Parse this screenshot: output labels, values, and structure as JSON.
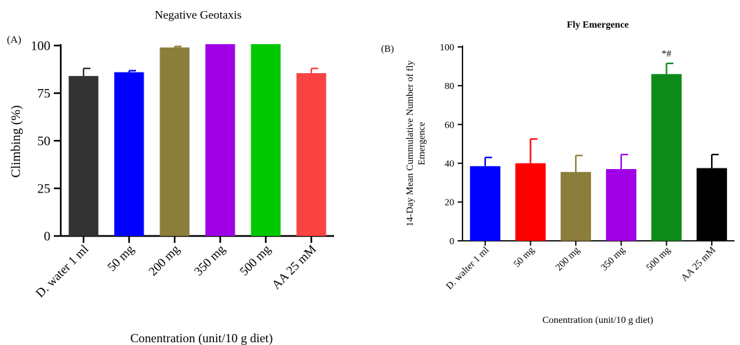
{
  "chart_data": [
    {
      "type": "bar",
      "panel_label": "(A)",
      "title": "Negative Geotaxis",
      "xlabel": "Conentration  (unit/10 g diet)",
      "ylabel": "Climbing (%)",
      "ylim": [
        0,
        100
      ],
      "yticks": [
        "0",
        "25",
        "50",
        "75",
        "100"
      ],
      "categories": [
        "D. water 1 ml",
        "50 mg",
        "200 mg",
        "350 mg",
        "500 mg",
        "AA 25 mM"
      ],
      "values": [
        84,
        86,
        99,
        100,
        100,
        85.5
      ],
      "errors": [
        4,
        0.8,
        0.5,
        0,
        0,
        2.5
      ],
      "colors": [
        "#333333",
        "#0000ff",
        "#8b7d3a",
        "#a100e6",
        "#00c800",
        "#f94343"
      ],
      "grid": false,
      "annotations": []
    },
    {
      "type": "bar",
      "panel_label": "(B)",
      "title": "Fly Emergence",
      "xlabel": "Conentration  (unit/10 g diet)",
      "ylabel": "14-Day Mean Cummulative Number of fly Emergence",
      "ylim": [
        0,
        100
      ],
      "yticks": [
        "0",
        "20",
        "40",
        "60",
        "80",
        "100"
      ],
      "categories": [
        "D. walter 1 ml",
        "50 mg",
        "200 mg",
        "350 mg",
        "500 mg",
        "AA 25 mM"
      ],
      "values": [
        38.5,
        40,
        35.5,
        37,
        86,
        37.5
      ],
      "errors": [
        4.5,
        12.5,
        8.5,
        7.5,
        5.5,
        7
      ],
      "colors": [
        "#0000ff",
        "#ff0000",
        "#8b7d3a",
        "#a100e6",
        "#0e8a1a",
        "#000000"
      ],
      "grid": false,
      "annotations": [
        {
          "category": "500 mg",
          "text": "*#"
        }
      ]
    }
  ]
}
